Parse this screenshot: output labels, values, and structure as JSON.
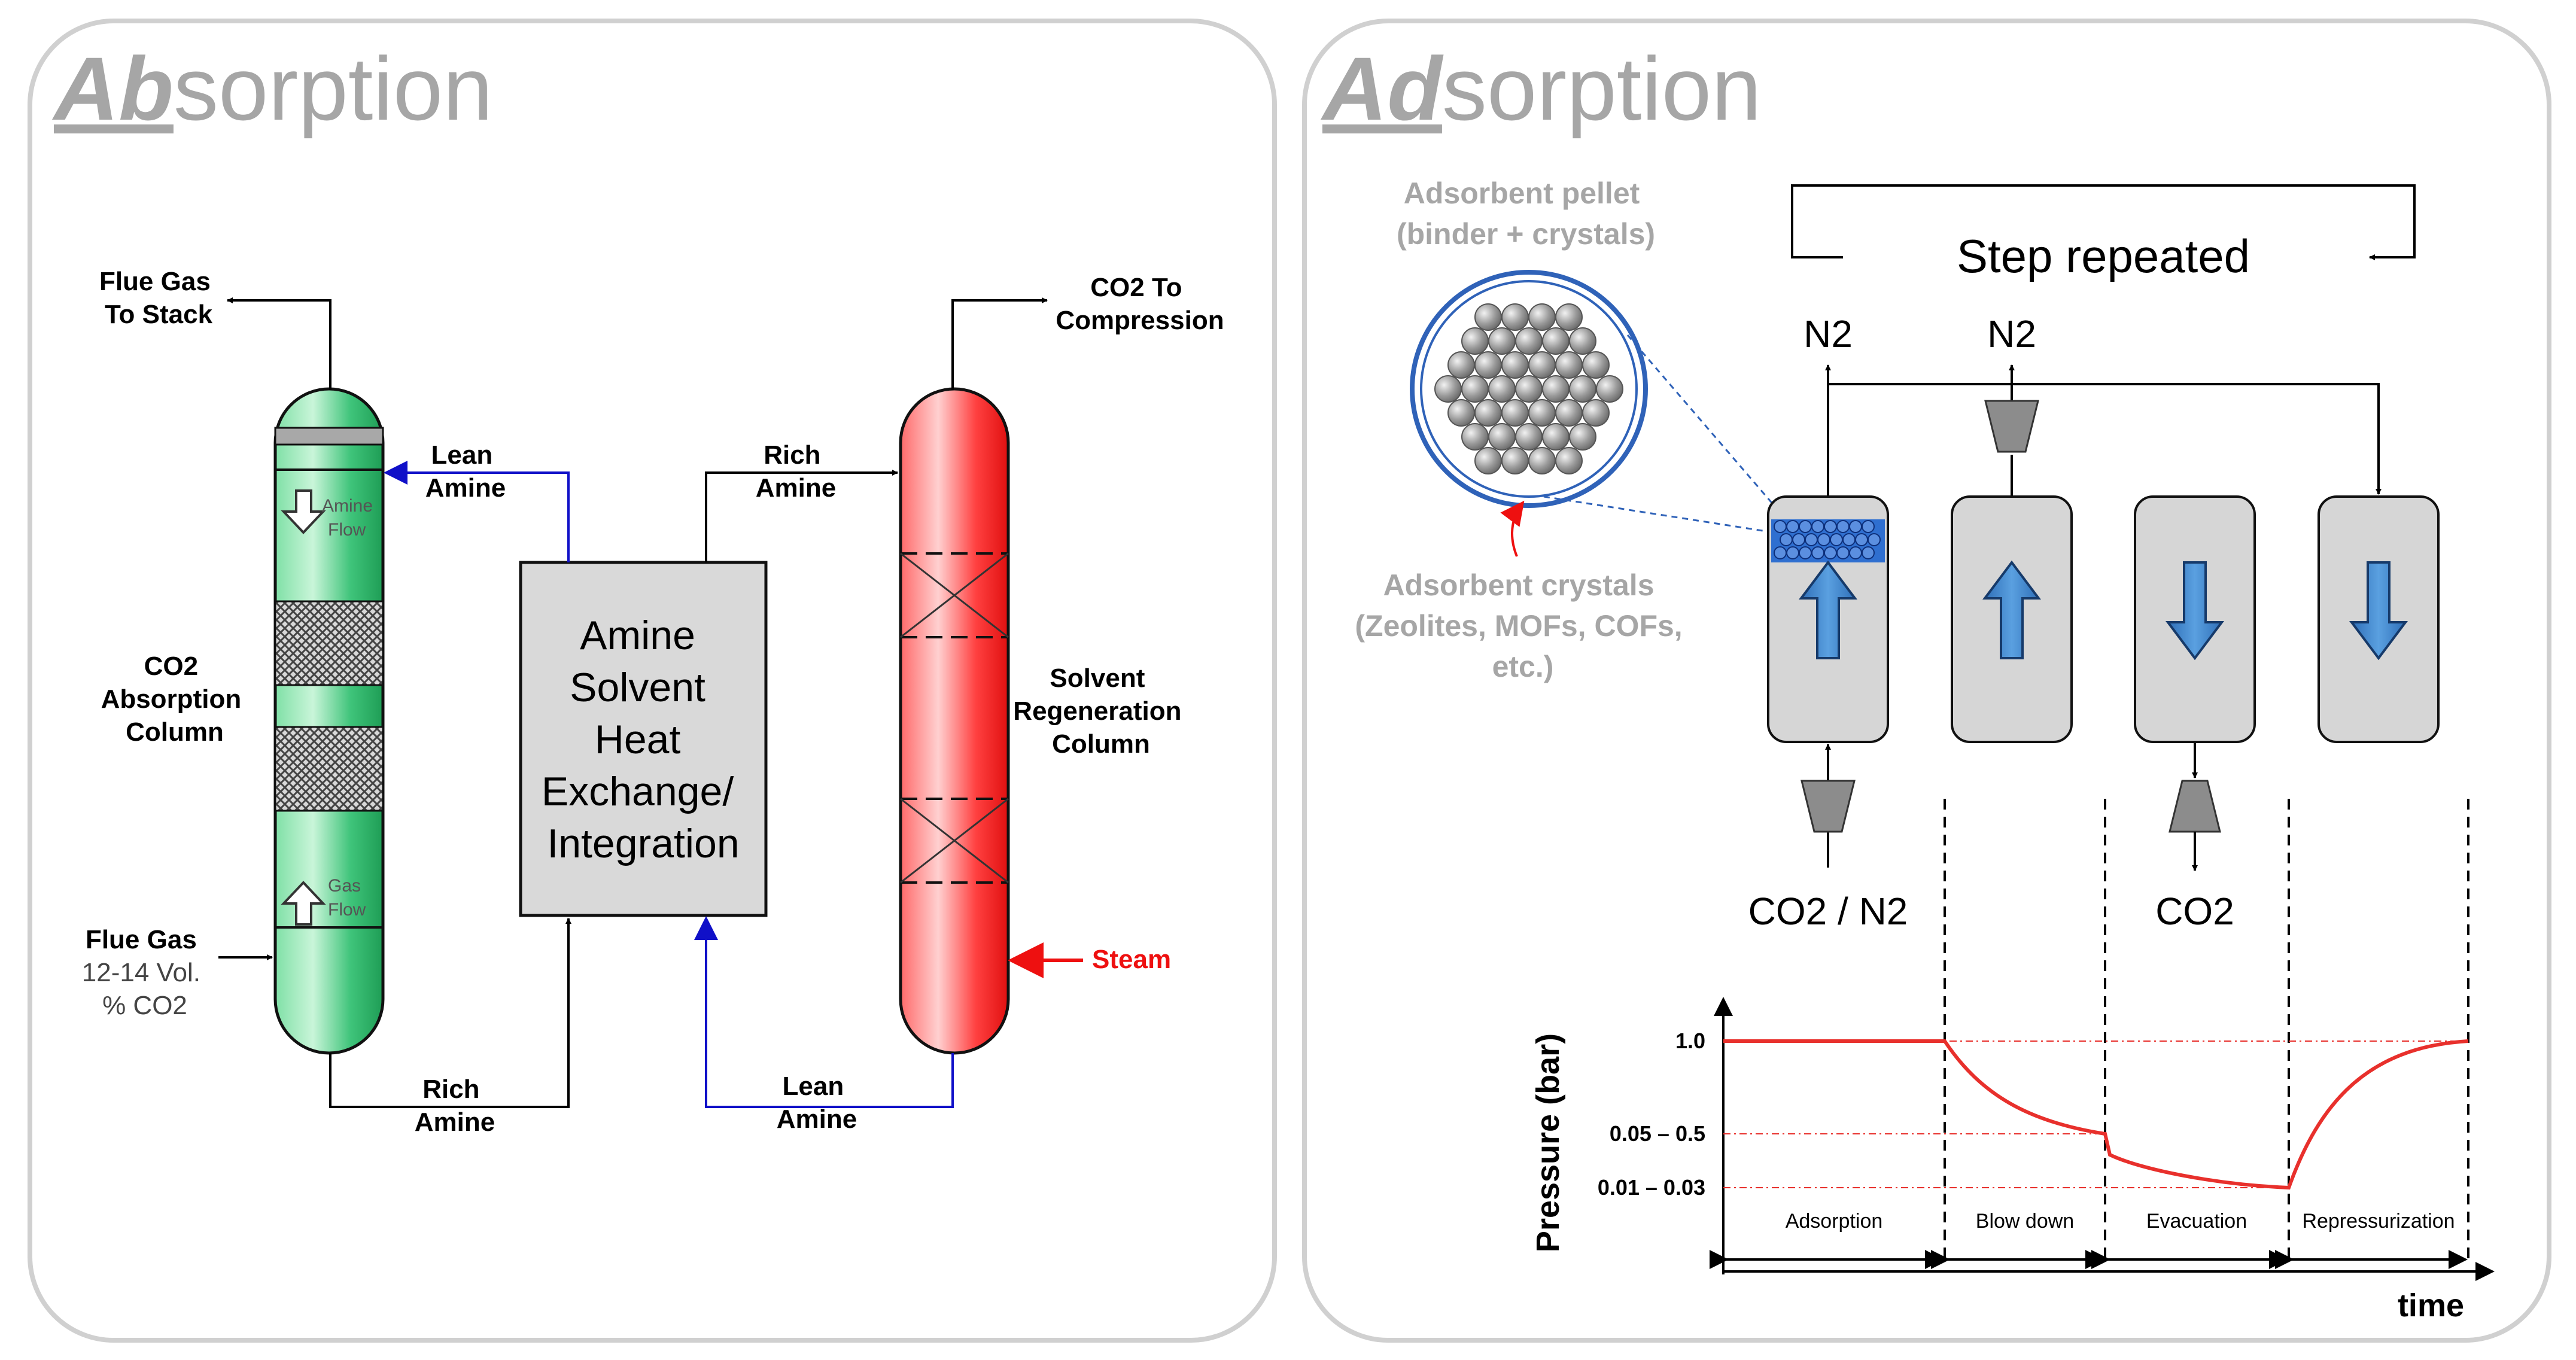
{
  "left": {
    "title_emph": "Ab",
    "title_rest": "sorption",
    "flue_gas_stack": [
      "Flue Gas",
      "To Stack"
    ],
    "lean_amine_top": [
      "Lean",
      "Amine"
    ],
    "amine_flow": [
      "Amine",
      "Flow"
    ],
    "absorption_column": [
      "CO2",
      "Absorption",
      "Column"
    ],
    "gas_flow": [
      "Gas",
      "Flow"
    ],
    "flue_gas_in": [
      "Flue Gas",
      "12-14 Vol.",
      "% CO2"
    ],
    "rich_amine_bottom": [
      "Rich",
      "Amine"
    ],
    "exchanger": [
      "Amine",
      "Solvent",
      "Heat",
      "Exchange/",
      "Integration"
    ],
    "rich_amine_top": [
      "Rich",
      "Amine"
    ],
    "co2_compression": [
      "CO2 To",
      "Compression"
    ],
    "regeneration_column": [
      "Solvent",
      "Regeneration",
      "Column"
    ],
    "steam": "Steam",
    "lean_amine_bottom": [
      "Lean",
      "Amine"
    ]
  },
  "right": {
    "title_emph": "Ad",
    "title_rest": "sorption",
    "pellet_label": [
      "Adsorbent pellet",
      "(binder + crystals)"
    ],
    "crystals_label": [
      "Adsorbent crystals",
      "(Zeolites, MOFs, COFs,",
      "etc.)"
    ],
    "step_repeated": "Step repeated",
    "n2_a": "N2",
    "n2_b": "N2",
    "feed_label": "CO2 / N2",
    "co2_out": "CO2",
    "chart_data": {
      "type": "line",
      "ylabel": "Pressure (bar)",
      "xlabel": "time",
      "y_ticks": [
        "1.0",
        "0.05 – 0.5",
        "0.01 – 0.03"
      ],
      "phases": [
        "Adsorption",
        "Blow down",
        "Evacuation",
        "Repressurization"
      ],
      "series": [
        {
          "values": [
            1.0,
            1.0,
            0.3,
            0.02,
            1.0
          ]
        }
      ],
      "colors": {
        "line": "#e8302c",
        "guides": "#e8302c"
      }
    }
  }
}
